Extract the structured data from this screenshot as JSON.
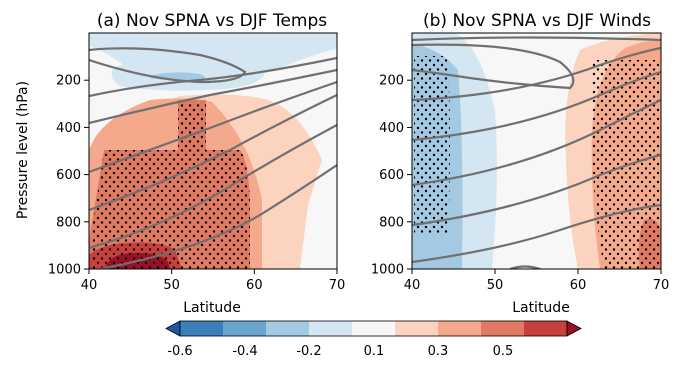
{
  "chart_data": [
    {
      "type": "heatmap",
      "title": "(a) Nov SPNA vs DJF Temps",
      "xlabel": "Latitude",
      "ylabel": "Pressure level (hPa)",
      "xlim": [
        40,
        70
      ],
      "ylim": [
        1000,
        0
      ],
      "xticks": [
        40,
        50,
        60,
        70
      ],
      "yticks": [
        200,
        400,
        600,
        800,
        1000
      ],
      "features": {
        "negative_regions": [
          {
            "level": -0.1,
            "region": "upper atmosphere 0-230 hPa, 43-66 N"
          },
          {
            "level": -0.2,
            "region": "core near 180-210 hPa, 46-52 N"
          }
        ],
        "positive_regions": [
          {
            "level": 0.1,
            "region": "260-1000 hPa, 40-65 N"
          },
          {
            "level": 0.2,
            "region": "270-1000 hPa, 40-60 N"
          },
          {
            "level": 0.3,
            "region": "450-1000 hPa, 40-57 N"
          },
          {
            "level": 0.4,
            "region": "900-1000 hPa, 43-52 N"
          },
          {
            "level": 0.5,
            "region": "near surface 45-50 N"
          }
        ],
        "stippling": "300-1000 hPa, 40-57 N (significant)"
      }
    },
    {
      "type": "heatmap",
      "title": "(b) Nov SPNA vs DJF Winds",
      "xlabel": "Latitude",
      "ylim": [
        1000,
        0
      ],
      "xlim": [
        40,
        70
      ],
      "xticks": [
        40,
        50,
        60,
        70
      ],
      "yticks": [
        200,
        400,
        600,
        800,
        1000
      ],
      "features": {
        "negative_regions": [
          {
            "level": -0.1,
            "region": "whole column 40-50 N"
          },
          {
            "level": -0.2,
            "region": "100-1000 hPa, 40-45 N"
          }
        ],
        "positive_regions": [
          {
            "level": 0.1,
            "region": "whole column 56-70 N"
          },
          {
            "level": 0.2,
            "region": "whole column 60-70 N"
          },
          {
            "level": 0.3,
            "region": "900-1000 hPa, 66-69 N"
          }
        ],
        "stippling_regions": [
          "100-850 hPa, 40-45 N",
          "100-1000 hPa, 62-70 N"
        ]
      }
    }
  ],
  "colorbar": {
    "ticks": [
      "-0.6",
      "-0.4",
      "-0.2",
      "0.1",
      "0.3",
      "0.5"
    ],
    "colors": [
      "#1b5a9c",
      "#3a7fba",
      "#6aa5cd",
      "#a3cae2",
      "#d4e6f1",
      "#f7f7f7",
      "#fbd3be",
      "#f4a98c",
      "#e17a62",
      "#c8403d",
      "#9c1027"
    ]
  },
  "colors": {
    "pos1": "#fbd3be",
    "pos2": "#f4a98c",
    "pos3": "#e17a62",
    "pos4": "#c8403d",
    "pos5": "#9c1027",
    "neg1": "#d4e6f1",
    "neg2": "#a3cae2",
    "neg3": "#6aa5cd",
    "neutral": "#f7f7f7",
    "contour": "#707070"
  }
}
